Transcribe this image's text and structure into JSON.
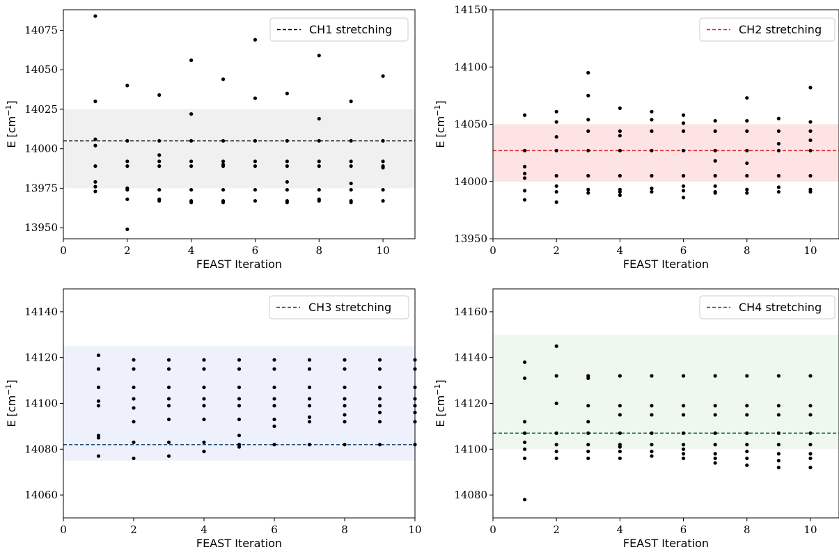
{
  "chart_data": [
    {
      "type": "scatter",
      "xlabel": "FEAST Iteration",
      "ylabel": "E [cm",
      "ylabel_sup": "−1",
      "ylabel_close": "]",
      "xlim": [
        0,
        11
      ],
      "ylim": [
        13943,
        14088
      ],
      "xticks": [
        0,
        2,
        4,
        6,
        8,
        10
      ],
      "yticks": [
        13950,
        13975,
        14000,
        14025,
        14050,
        14075
      ],
      "reference": {
        "name": "CH1 stretching",
        "y": 14005,
        "color": "#000000",
        "band": [
          13975,
          14025
        ],
        "band_color": "#f0f0f0"
      },
      "legend_position": "top-right",
      "points": [
        [
          1,
          14084
        ],
        [
          1,
          14030
        ],
        [
          1,
          14006
        ],
        [
          1,
          14002
        ],
        [
          1,
          13989
        ],
        [
          1,
          13979
        ],
        [
          1,
          13976
        ],
        [
          1,
          13973
        ],
        [
          2,
          14040
        ],
        [
          2,
          14005
        ],
        [
          2,
          13992
        ],
        [
          2,
          13989
        ],
        [
          2,
          13975
        ],
        [
          2,
          13974
        ],
        [
          2,
          13968
        ],
        [
          2,
          13949
        ],
        [
          3,
          14034
        ],
        [
          3,
          14005
        ],
        [
          3,
          13996
        ],
        [
          3,
          13992
        ],
        [
          3,
          13989
        ],
        [
          3,
          13974
        ],
        [
          3,
          13968
        ],
        [
          3,
          13967
        ],
        [
          4,
          14056
        ],
        [
          4,
          14022
        ],
        [
          4,
          14005
        ],
        [
          4,
          13992
        ],
        [
          4,
          13989
        ],
        [
          4,
          13974
        ],
        [
          4,
          13967
        ],
        [
          4,
          13966
        ],
        [
          5,
          14044
        ],
        [
          5,
          14005
        ],
        [
          5,
          13992
        ],
        [
          5,
          13990
        ],
        [
          5,
          13989
        ],
        [
          5,
          13974
        ],
        [
          5,
          13967
        ],
        [
          5,
          13966
        ],
        [
          6,
          14069
        ],
        [
          6,
          14032
        ],
        [
          6,
          14005
        ],
        [
          6,
          13992
        ],
        [
          6,
          13989
        ],
        [
          6,
          13974
        ],
        [
          6,
          13967
        ],
        [
          7,
          14035
        ],
        [
          7,
          14005
        ],
        [
          7,
          13992
        ],
        [
          7,
          13989
        ],
        [
          7,
          13979
        ],
        [
          7,
          13974
        ],
        [
          7,
          13967
        ],
        [
          7,
          13966
        ],
        [
          8,
          14059
        ],
        [
          8,
          14019
        ],
        [
          8,
          14005
        ],
        [
          8,
          13992
        ],
        [
          8,
          13989
        ],
        [
          8,
          13974
        ],
        [
          8,
          13968
        ],
        [
          8,
          13967
        ],
        [
          9,
          14030
        ],
        [
          9,
          14005
        ],
        [
          9,
          13992
        ],
        [
          9,
          13989
        ],
        [
          9,
          13978
        ],
        [
          9,
          13974
        ],
        [
          9,
          13967
        ],
        [
          9,
          13966
        ],
        [
          10,
          14046
        ],
        [
          10,
          14005
        ],
        [
          10,
          13992
        ],
        [
          10,
          13989
        ],
        [
          10,
          13988
        ],
        [
          10,
          13974
        ],
        [
          10,
          13967
        ]
      ]
    },
    {
      "type": "scatter",
      "xlabel": "FEAST Iteration",
      "ylabel": "E [cm",
      "ylabel_sup": "−1",
      "ylabel_close": "]",
      "xlim": [
        0,
        10.9
      ],
      "ylim": [
        13950,
        14150
      ],
      "xticks": [
        0,
        2,
        4,
        6,
        8,
        10
      ],
      "yticks": [
        13950,
        14000,
        14050,
        14100,
        14150
      ],
      "reference": {
        "name": "CH2 stretching",
        "y": 14027,
        "color": "#d62728",
        "band": [
          14000,
          14050
        ],
        "band_color": "#fde3e3"
      },
      "legend_position": "top-right",
      "points": [
        [
          1,
          14058
        ],
        [
          1,
          14027
        ],
        [
          1,
          14013
        ],
        [
          1,
          14007
        ],
        [
          1,
          14003
        ],
        [
          1,
          13992
        ],
        [
          1,
          13984
        ],
        [
          2,
          14061
        ],
        [
          2,
          14052
        ],
        [
          2,
          14039
        ],
        [
          2,
          14027
        ],
        [
          2,
          14005
        ],
        [
          2,
          13996
        ],
        [
          2,
          13991
        ],
        [
          2,
          13982
        ],
        [
          3,
          14095
        ],
        [
          3,
          14075
        ],
        [
          3,
          14054
        ],
        [
          3,
          14044
        ],
        [
          3,
          14027
        ],
        [
          3,
          14005
        ],
        [
          3,
          13993
        ],
        [
          3,
          13990
        ],
        [
          4,
          14064
        ],
        [
          4,
          14044
        ],
        [
          4,
          14040
        ],
        [
          4,
          14027
        ],
        [
          4,
          14005
        ],
        [
          4,
          13993
        ],
        [
          4,
          13991
        ],
        [
          4,
          13988
        ],
        [
          5,
          14061
        ],
        [
          5,
          14054
        ],
        [
          5,
          14044
        ],
        [
          5,
          14027
        ],
        [
          5,
          14005
        ],
        [
          5,
          13994
        ],
        [
          5,
          13991
        ],
        [
          6,
          14058
        ],
        [
          6,
          14051
        ],
        [
          6,
          14044
        ],
        [
          6,
          14027
        ],
        [
          6,
          14005
        ],
        [
          6,
          13996
        ],
        [
          6,
          13992
        ],
        [
          6,
          13986
        ],
        [
          7,
          14053
        ],
        [
          7,
          14044
        ],
        [
          7,
          14027
        ],
        [
          7,
          14018
        ],
        [
          7,
          14005
        ],
        [
          7,
          13996
        ],
        [
          7,
          13991
        ],
        [
          7,
          13990
        ],
        [
          8,
          14073
        ],
        [
          8,
          14053
        ],
        [
          8,
          14044
        ],
        [
          8,
          14027
        ],
        [
          8,
          14016
        ],
        [
          8,
          14005
        ],
        [
          8,
          13993
        ],
        [
          8,
          13990
        ],
        [
          9,
          14055
        ],
        [
          9,
          14044
        ],
        [
          9,
          14033
        ],
        [
          9,
          14027
        ],
        [
          9,
          14005
        ],
        [
          9,
          13995
        ],
        [
          9,
          13991
        ],
        [
          10,
          14082
        ],
        [
          10,
          14052
        ],
        [
          10,
          14044
        ],
        [
          10,
          14036
        ],
        [
          10,
          14027
        ],
        [
          10,
          14005
        ],
        [
          10,
          13993
        ],
        [
          10,
          13991
        ]
      ]
    },
    {
      "type": "scatter",
      "xlabel": "FEAST Iteration",
      "ylabel": "E [cm",
      "ylabel_sup": "−1",
      "ylabel_close": "]",
      "xlim": [
        0,
        10
      ],
      "ylim": [
        14050,
        14150
      ],
      "xticks": [
        0,
        2,
        4,
        6,
        8,
        10
      ],
      "yticks": [
        14060,
        14080,
        14100,
        14120,
        14140
      ],
      "reference": {
        "name": "CH3 stretching",
        "y": 14082,
        "color": "#1f4e79",
        "band": [
          14075,
          14125
        ],
        "band_color": "#eef0fc"
      },
      "legend_position": "top-right",
      "points": [
        [
          1,
          14121
        ],
        [
          1,
          14115
        ],
        [
          1,
          14107
        ],
        [
          1,
          14101
        ],
        [
          1,
          14099
        ],
        [
          1,
          14086
        ],
        [
          1,
          14085
        ],
        [
          1,
          14077
        ],
        [
          2,
          14119
        ],
        [
          2,
          14115
        ],
        [
          2,
          14107
        ],
        [
          2,
          14102
        ],
        [
          2,
          14098
        ],
        [
          2,
          14092
        ],
        [
          2,
          14083
        ],
        [
          2,
          14076
        ],
        [
          3,
          14119
        ],
        [
          3,
          14115
        ],
        [
          3,
          14107
        ],
        [
          3,
          14102
        ],
        [
          3,
          14099
        ],
        [
          3,
          14093
        ],
        [
          3,
          14083
        ],
        [
          3,
          14077
        ],
        [
          4,
          14119
        ],
        [
          4,
          14115
        ],
        [
          4,
          14107
        ],
        [
          4,
          14102
        ],
        [
          4,
          14099
        ],
        [
          4,
          14093
        ],
        [
          4,
          14083
        ],
        [
          4,
          14079
        ],
        [
          5,
          14119
        ],
        [
          5,
          14115
        ],
        [
          5,
          14107
        ],
        [
          5,
          14102
        ],
        [
          5,
          14099
        ],
        [
          5,
          14093
        ],
        [
          5,
          14086
        ],
        [
          5,
          14082
        ],
        [
          5,
          14081
        ],
        [
          6,
          14119
        ],
        [
          6,
          14115
        ],
        [
          6,
          14107
        ],
        [
          6,
          14102
        ],
        [
          6,
          14099
        ],
        [
          6,
          14093
        ],
        [
          6,
          14090
        ],
        [
          6,
          14082
        ],
        [
          7,
          14119
        ],
        [
          7,
          14115
        ],
        [
          7,
          14107
        ],
        [
          7,
          14102
        ],
        [
          7,
          14099
        ],
        [
          7,
          14094
        ],
        [
          7,
          14092
        ],
        [
          7,
          14082
        ],
        [
          8,
          14119
        ],
        [
          8,
          14115
        ],
        [
          8,
          14107
        ],
        [
          8,
          14102
        ],
        [
          8,
          14099
        ],
        [
          8,
          14095
        ],
        [
          8,
          14092
        ],
        [
          8,
          14082
        ],
        [
          9,
          14119
        ],
        [
          9,
          14115
        ],
        [
          9,
          14107
        ],
        [
          9,
          14102
        ],
        [
          9,
          14099
        ],
        [
          9,
          14096
        ],
        [
          9,
          14092
        ],
        [
          9,
          14082
        ],
        [
          10,
          14119
        ],
        [
          10,
          14115
        ],
        [
          10,
          14107
        ],
        [
          10,
          14102
        ],
        [
          10,
          14099
        ],
        [
          10,
          14096
        ],
        [
          10,
          14092
        ],
        [
          10,
          14082
        ]
      ]
    },
    {
      "type": "scatter",
      "xlabel": "FEAST Iteration",
      "ylabel": "E [cm",
      "ylabel_sup": "−1",
      "ylabel_close": "]",
      "xlim": [
        0,
        10.9
      ],
      "ylim": [
        14070,
        14170
      ],
      "xticks": [
        0,
        2,
        4,
        6,
        8,
        10
      ],
      "yticks": [
        14080,
        14100,
        14120,
        14140,
        14160
      ],
      "reference": {
        "name": "CH4 stretching",
        "y": 14107,
        "color": "#1b6b3a",
        "band": [
          14100,
          14150
        ],
        "band_color": "#eff8ee"
      },
      "legend_position": "top-right",
      "points": [
        [
          1,
          14138
        ],
        [
          1,
          14131
        ],
        [
          1,
          14112
        ],
        [
          1,
          14107
        ],
        [
          1,
          14103
        ],
        [
          1,
          14100
        ],
        [
          1,
          14096
        ],
        [
          1,
          14078
        ],
        [
          2,
          14145
        ],
        [
          2,
          14132
        ],
        [
          2,
          14120
        ],
        [
          2,
          14107
        ],
        [
          2,
          14102
        ],
        [
          2,
          14099
        ],
        [
          2,
          14096
        ],
        [
          3,
          14132
        ],
        [
          3,
          14131
        ],
        [
          3,
          14119
        ],
        [
          3,
          14112
        ],
        [
          3,
          14107
        ],
        [
          3,
          14102
        ],
        [
          3,
          14099
        ],
        [
          3,
          14096
        ],
        [
          4,
          14132
        ],
        [
          4,
          14119
        ],
        [
          4,
          14115
        ],
        [
          4,
          14107
        ],
        [
          4,
          14102
        ],
        [
          4,
          14101
        ],
        [
          4,
          14099
        ],
        [
          4,
          14096
        ],
        [
          5,
          14132
        ],
        [
          5,
          14119
        ],
        [
          5,
          14115
        ],
        [
          5,
          14107
        ],
        [
          5,
          14102
        ],
        [
          5,
          14099
        ],
        [
          5,
          14097
        ],
        [
          6,
          14132
        ],
        [
          6,
          14119
        ],
        [
          6,
          14115
        ],
        [
          6,
          14107
        ],
        [
          6,
          14102
        ],
        [
          6,
          14100
        ],
        [
          6,
          14098
        ],
        [
          6,
          14096
        ],
        [
          7,
          14132
        ],
        [
          7,
          14119
        ],
        [
          7,
          14115
        ],
        [
          7,
          14107
        ],
        [
          7,
          14102
        ],
        [
          7,
          14098
        ],
        [
          7,
          14096
        ],
        [
          7,
          14094
        ],
        [
          8,
          14132
        ],
        [
          8,
          14119
        ],
        [
          8,
          14115
        ],
        [
          8,
          14107
        ],
        [
          8,
          14102
        ],
        [
          8,
          14099
        ],
        [
          8,
          14096
        ],
        [
          8,
          14093
        ],
        [
          9,
          14132
        ],
        [
          9,
          14119
        ],
        [
          9,
          14115
        ],
        [
          9,
          14107
        ],
        [
          9,
          14102
        ],
        [
          9,
          14098
        ],
        [
          9,
          14095
        ],
        [
          9,
          14092
        ],
        [
          10,
          14132
        ],
        [
          10,
          14119
        ],
        [
          10,
          14115
        ],
        [
          10,
          14107
        ],
        [
          10,
          14102
        ],
        [
          10,
          14098
        ],
        [
          10,
          14096
        ],
        [
          10,
          14092
        ]
      ]
    }
  ]
}
